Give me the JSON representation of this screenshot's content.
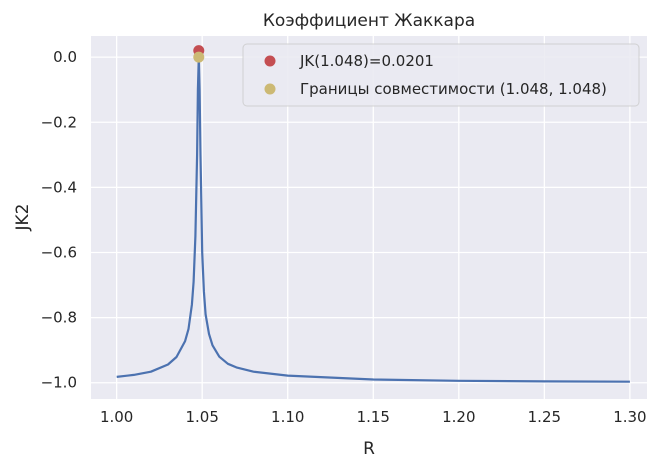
{
  "chart_data": {
    "type": "line",
    "title": "Коэффициент Жаккара",
    "xlabel": "R",
    "ylabel": "JK2",
    "xlim": [
      0.985,
      1.31
    ],
    "ylim": [
      -1.05,
      0.065
    ],
    "grid": true,
    "legend_position": "top-right",
    "x_ticks": [
      1.0,
      1.05,
      1.1,
      1.15,
      1.2,
      1.25,
      1.3
    ],
    "x_tick_labels": [
      "1.00",
      "1.05",
      "1.10",
      "1.15",
      "1.20",
      "1.25",
      "1.30"
    ],
    "y_ticks": [
      0.0,
      -0.2,
      -0.4,
      -0.6,
      -0.8,
      -1.0
    ],
    "y_tick_labels": [
      "0.0",
      "−0.2",
      "−0.4",
      "−0.6",
      "−0.8",
      "−1.0"
    ],
    "series": [
      {
        "color": "#4c72b0",
        "x": [
          1.0,
          1.01,
          1.02,
          1.03,
          1.035,
          1.04,
          1.042,
          1.044,
          1.045,
          1.046,
          1.047,
          1.0475,
          1.048,
          1.0485,
          1.049,
          1.05,
          1.051,
          1.052,
          1.054,
          1.056,
          1.06,
          1.065,
          1.07,
          1.08,
          1.1,
          1.15,
          1.2,
          1.25,
          1.3
        ],
        "y": [
          -0.982,
          -0.976,
          -0.966,
          -0.944,
          -0.921,
          -0.872,
          -0.835,
          -0.76,
          -0.69,
          -0.55,
          -0.3,
          -0.1,
          0.0,
          -0.1,
          -0.3,
          -0.6,
          -0.72,
          -0.79,
          -0.85,
          -0.885,
          -0.92,
          -0.942,
          -0.953,
          -0.966,
          -0.978,
          -0.99,
          -0.994,
          -0.996,
          -0.997
        ]
      }
    ],
    "points": [
      {
        "label": "JK(1.048)=0.0201",
        "x": 1.048,
        "y": 0.0201,
        "color": "#c44e52"
      },
      {
        "label": "Границы совместимости (1.048, 1.048)",
        "x": 1.048,
        "y": 0.0,
        "color": "#ccb974"
      }
    ]
  }
}
